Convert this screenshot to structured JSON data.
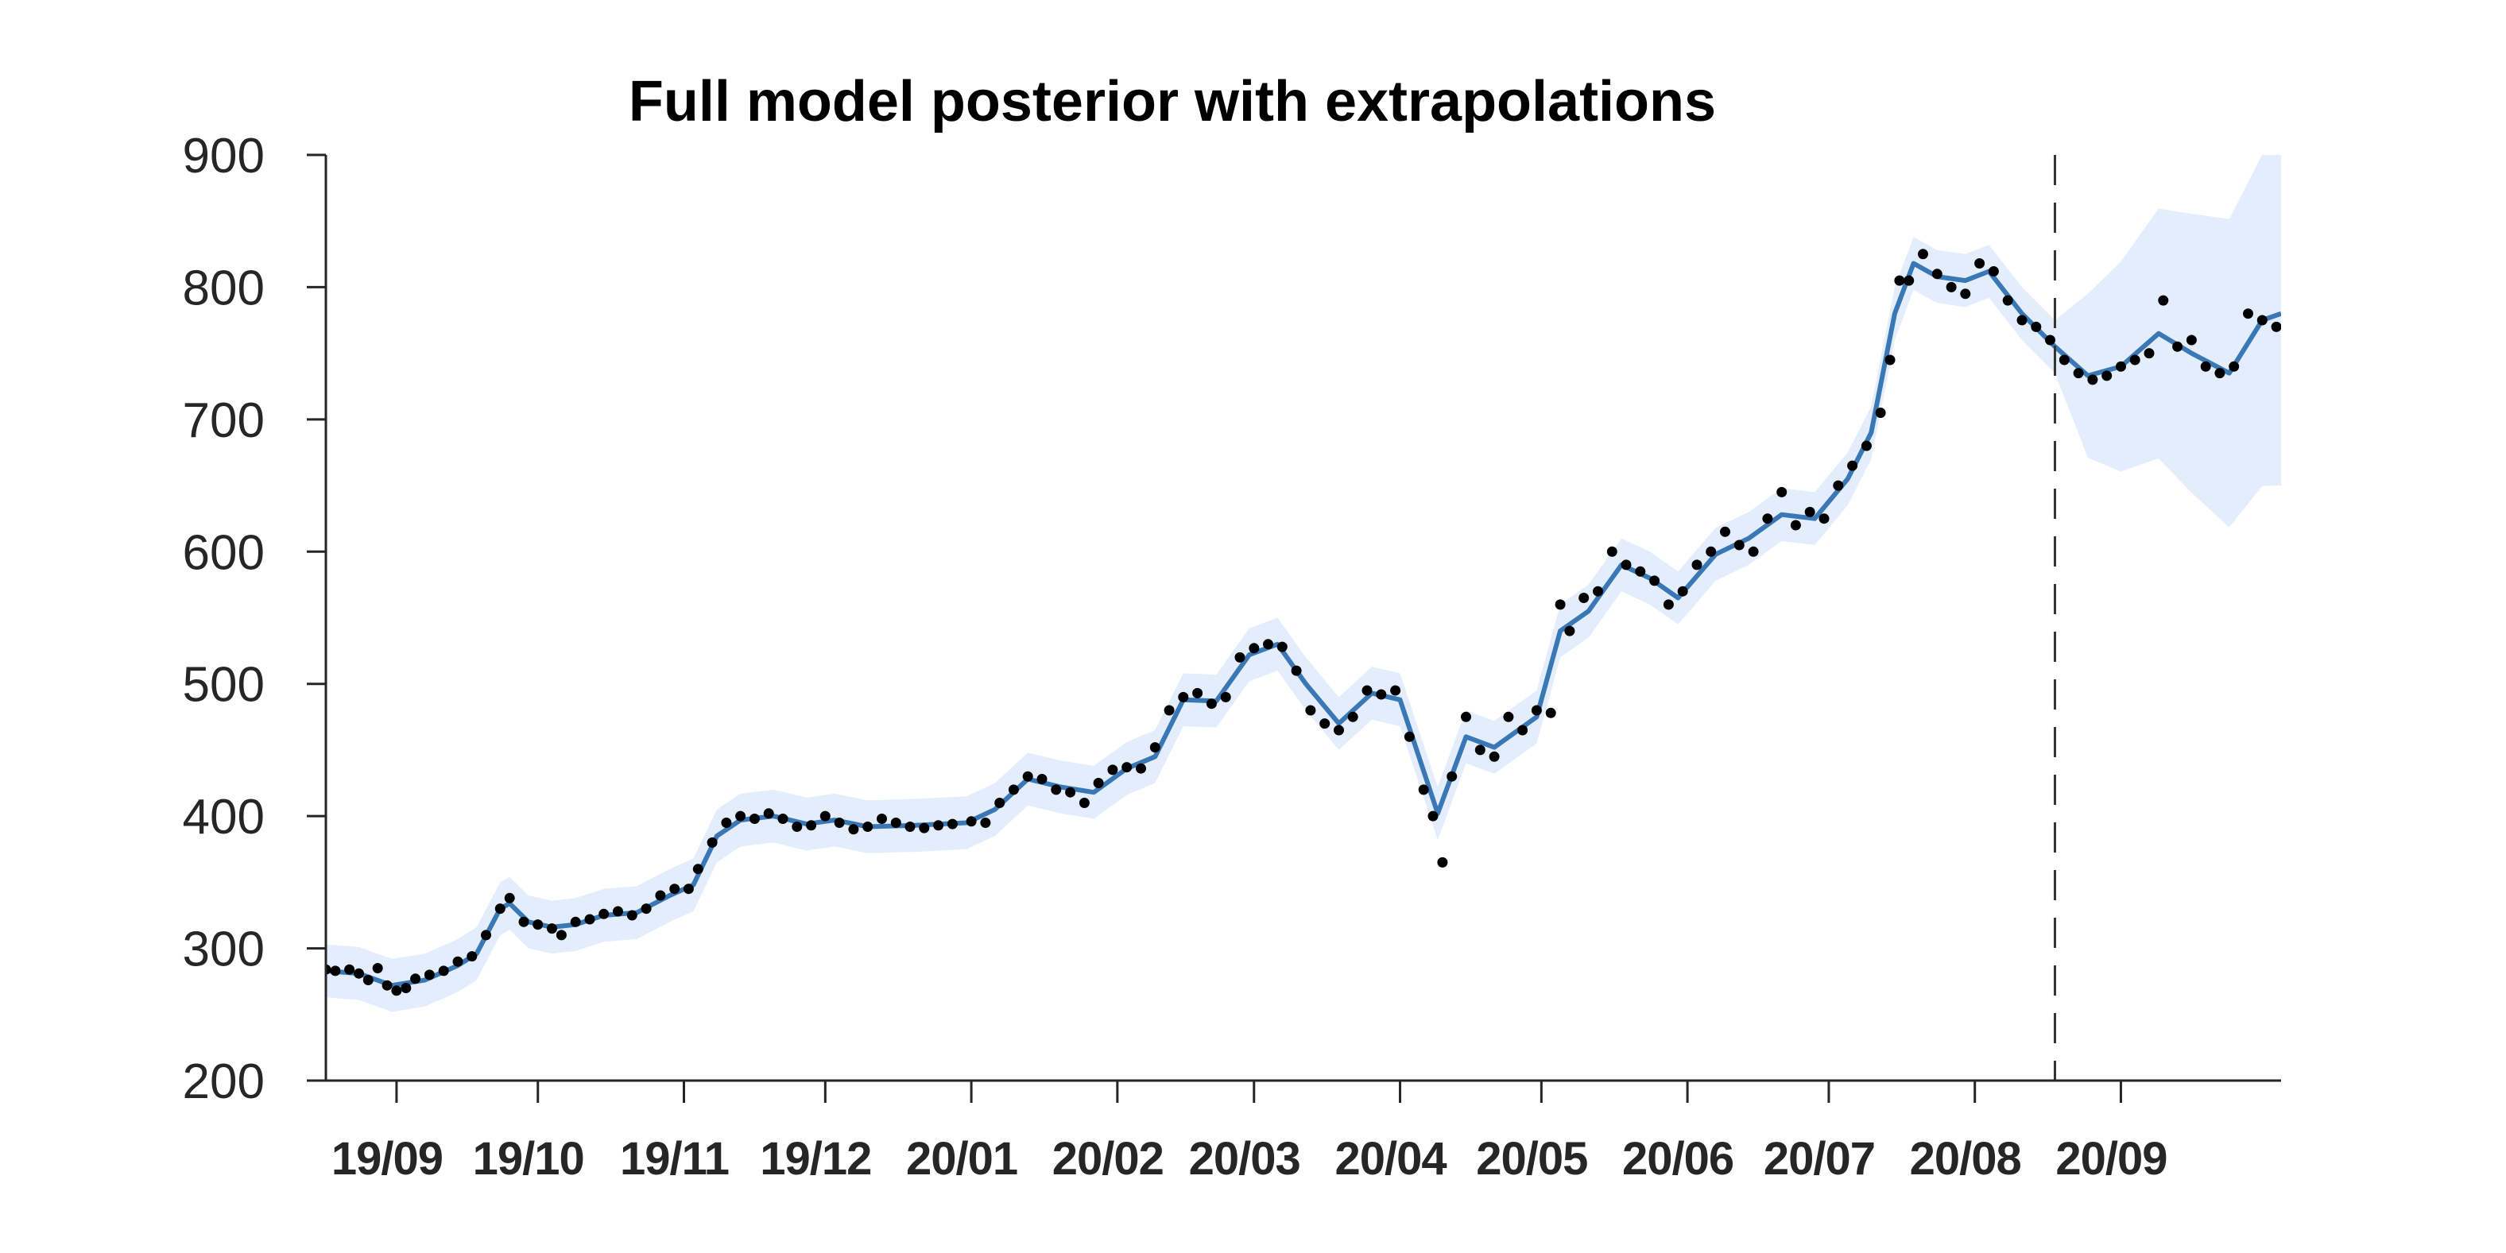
{
  "chart_data": {
    "type": "line",
    "title": "Full model posterior with extrapolations",
    "xlabel": "",
    "ylabel": "",
    "ylim": [
      200,
      900
    ],
    "yticks": [
      200,
      300,
      400,
      500,
      600,
      700,
      800,
      900
    ],
    "xlim": [
      "2019-08-17",
      "2020-10-05"
    ],
    "xticks": [
      {
        "date": "2019-09-01",
        "label": "19/09"
      },
      {
        "date": "2019-10-01",
        "label": "19/10"
      },
      {
        "date": "2019-11-01",
        "label": "19/11"
      },
      {
        "date": "2019-12-01",
        "label": "19/12"
      },
      {
        "date": "2020-01-01",
        "label": "20/01"
      },
      {
        "date": "2020-02-01",
        "label": "20/02"
      },
      {
        "date": "2020-03-01",
        "label": "20/03"
      },
      {
        "date": "2020-04-01",
        "label": "20/04"
      },
      {
        "date": "2020-05-01",
        "label": "20/05"
      },
      {
        "date": "2020-06-01",
        "label": "20/06"
      },
      {
        "date": "2020-07-01",
        "label": "20/07"
      },
      {
        "date": "2020-08-01",
        "label": "20/08"
      },
      {
        "date": "2020-09-01",
        "label": "20/09"
      }
    ],
    "forecast_start": "2020-08-18",
    "grid": false,
    "legend": "none",
    "colors": {
      "mean": "#3a78b5",
      "band": "#e4edfc",
      "points": "#000000",
      "axis": "#262626",
      "divider": "#333333"
    },
    "series": [
      {
        "role": "observations",
        "points": [
          [
            "2019-08-17",
            284
          ],
          [
            "2019-08-19",
            283
          ],
          [
            "2019-08-22",
            284
          ],
          [
            "2019-08-24",
            281
          ],
          [
            "2019-08-26",
            276
          ],
          [
            "2019-08-28",
            285
          ],
          [
            "2019-08-30",
            272
          ],
          [
            "2019-09-01",
            268
          ],
          [
            "2019-09-03",
            270
          ],
          [
            "2019-09-05",
            277
          ],
          [
            "2019-09-08",
            280
          ],
          [
            "2019-09-11",
            283
          ],
          [
            "2019-09-14",
            290
          ],
          [
            "2019-09-17",
            294
          ],
          [
            "2019-09-20",
            310
          ],
          [
            "2019-09-23",
            330
          ],
          [
            "2019-09-25",
            338
          ],
          [
            "2019-09-28",
            320
          ],
          [
            "2019-10-01",
            318
          ],
          [
            "2019-10-04",
            315
          ],
          [
            "2019-10-06",
            310
          ],
          [
            "2019-10-09",
            320
          ],
          [
            "2019-10-12",
            322
          ],
          [
            "2019-10-15",
            326
          ],
          [
            "2019-10-18",
            328
          ],
          [
            "2019-10-21",
            325
          ],
          [
            "2019-10-24",
            330
          ],
          [
            "2019-10-27",
            340
          ],
          [
            "2019-10-30",
            345
          ],
          [
            "2019-11-02",
            345
          ],
          [
            "2019-11-04",
            360
          ],
          [
            "2019-11-07",
            380
          ],
          [
            "2019-11-10",
            395
          ],
          [
            "2019-11-13",
            400
          ],
          [
            "2019-11-16",
            398
          ],
          [
            "2019-11-19",
            402
          ],
          [
            "2019-11-22",
            398
          ],
          [
            "2019-11-25",
            392
          ],
          [
            "2019-11-28",
            393
          ],
          [
            "2019-12-01",
            400
          ],
          [
            "2019-12-04",
            395
          ],
          [
            "2019-12-07",
            390
          ],
          [
            "2019-12-10",
            392
          ],
          [
            "2019-12-13",
            398
          ],
          [
            "2019-12-16",
            395
          ],
          [
            "2019-12-19",
            392
          ],
          [
            "2019-12-22",
            391
          ],
          [
            "2019-12-25",
            393
          ],
          [
            "2019-12-28",
            394
          ],
          [
            "2020-01-01",
            396
          ],
          [
            "2020-01-04",
            395
          ],
          [
            "2020-01-07",
            410
          ],
          [
            "2020-01-10",
            420
          ],
          [
            "2020-01-13",
            430
          ],
          [
            "2020-01-16",
            428
          ],
          [
            "2020-01-19",
            420
          ],
          [
            "2020-01-22",
            418
          ],
          [
            "2020-01-25",
            410
          ],
          [
            "2020-01-28",
            425
          ],
          [
            "2020-01-31",
            435
          ],
          [
            "2020-02-03",
            437
          ],
          [
            "2020-02-06",
            436
          ],
          [
            "2020-02-09",
            452
          ],
          [
            "2020-02-12",
            480
          ],
          [
            "2020-02-15",
            490
          ],
          [
            "2020-02-18",
            493
          ],
          [
            "2020-02-21",
            485
          ],
          [
            "2020-02-24",
            490
          ],
          [
            "2020-02-27",
            520
          ],
          [
            "2020-03-01",
            527
          ],
          [
            "2020-03-04",
            530
          ],
          [
            "2020-03-07",
            528
          ],
          [
            "2020-03-10",
            510
          ],
          [
            "2020-03-13",
            480
          ],
          [
            "2020-03-16",
            470
          ],
          [
            "2020-03-19",
            465
          ],
          [
            "2020-03-22",
            475
          ],
          [
            "2020-03-25",
            495
          ],
          [
            "2020-03-28",
            492
          ],
          [
            "2020-03-31",
            495
          ],
          [
            "2020-04-03",
            460
          ],
          [
            "2020-04-06",
            420
          ],
          [
            "2020-04-08",
            400
          ],
          [
            "2020-04-10",
            365
          ],
          [
            "2020-04-12",
            430
          ],
          [
            "2020-04-15",
            475
          ],
          [
            "2020-04-18",
            450
          ],
          [
            "2020-04-21",
            445
          ],
          [
            "2020-04-24",
            475
          ],
          [
            "2020-04-27",
            465
          ],
          [
            "2020-04-30",
            480
          ],
          [
            "2020-05-03",
            478
          ],
          [
            "2020-05-05",
            560
          ],
          [
            "2020-05-07",
            540
          ],
          [
            "2020-05-10",
            565
          ],
          [
            "2020-05-13",
            570
          ],
          [
            "2020-05-16",
            600
          ],
          [
            "2020-05-19",
            590
          ],
          [
            "2020-05-22",
            585
          ],
          [
            "2020-05-25",
            578
          ],
          [
            "2020-05-28",
            560
          ],
          [
            "2020-05-31",
            570
          ],
          [
            "2020-06-03",
            590
          ],
          [
            "2020-06-06",
            600
          ],
          [
            "2020-06-09",
            615
          ],
          [
            "2020-06-12",
            605
          ],
          [
            "2020-06-15",
            600
          ],
          [
            "2020-06-18",
            625
          ],
          [
            "2020-06-21",
            645
          ],
          [
            "2020-06-24",
            620
          ],
          [
            "2020-06-27",
            630
          ],
          [
            "2020-06-30",
            625
          ],
          [
            "2020-07-03",
            650
          ],
          [
            "2020-07-06",
            665
          ],
          [
            "2020-07-09",
            680
          ],
          [
            "2020-07-12",
            705
          ],
          [
            "2020-07-14",
            745
          ],
          [
            "2020-07-16",
            805
          ],
          [
            "2020-07-18",
            805
          ],
          [
            "2020-07-21",
            825
          ],
          [
            "2020-07-24",
            810
          ],
          [
            "2020-07-27",
            800
          ],
          [
            "2020-07-30",
            795
          ],
          [
            "2020-08-02",
            818
          ],
          [
            "2020-08-05",
            812
          ],
          [
            "2020-08-08",
            790
          ],
          [
            "2020-08-11",
            775
          ],
          [
            "2020-08-14",
            770
          ],
          [
            "2020-08-17",
            760
          ],
          [
            "2020-08-20",
            745
          ],
          [
            "2020-08-23",
            735
          ],
          [
            "2020-08-26",
            730
          ],
          [
            "2020-08-29",
            733
          ],
          [
            "2020-09-01",
            740
          ],
          [
            "2020-09-04",
            745
          ],
          [
            "2020-09-07",
            750
          ],
          [
            "2020-09-10",
            790
          ],
          [
            "2020-09-13",
            755
          ],
          [
            "2020-09-16",
            760
          ],
          [
            "2020-09-19",
            740
          ],
          [
            "2020-09-22",
            735
          ],
          [
            "2020-09-25",
            740
          ],
          [
            "2020-09-28",
            780
          ],
          [
            "2020-10-01",
            775
          ],
          [
            "2020-10-04",
            770
          ]
        ]
      },
      {
        "role": "posterior-mean",
        "points": [
          [
            "2019-08-17",
            283
          ],
          [
            "2019-08-24",
            281
          ],
          [
            "2019-08-31",
            272
          ],
          [
            "2019-09-07",
            276
          ],
          [
            "2019-09-14",
            287
          ],
          [
            "2019-09-18",
            296
          ],
          [
            "2019-09-23",
            330
          ],
          [
            "2019-09-25",
            334
          ],
          [
            "2019-09-29",
            320
          ],
          [
            "2019-10-04",
            316
          ],
          [
            "2019-10-09",
            318
          ],
          [
            "2019-10-15",
            325
          ],
          [
            "2019-10-22",
            327
          ],
          [
            "2019-10-29",
            340
          ],
          [
            "2019-11-03",
            348
          ],
          [
            "2019-11-08",
            385
          ],
          [
            "2019-11-13",
            397
          ],
          [
            "2019-11-20",
            400
          ],
          [
            "2019-11-27",
            394
          ],
          [
            "2019-12-03",
            397
          ],
          [
            "2019-12-10",
            392
          ],
          [
            "2019-12-20",
            393
          ],
          [
            "2019-12-31",
            395
          ],
          [
            "2020-01-06",
            405
          ],
          [
            "2020-01-13",
            428
          ],
          [
            "2020-01-20",
            422
          ],
          [
            "2020-01-27",
            418
          ],
          [
            "2020-02-03",
            436
          ],
          [
            "2020-02-09",
            445
          ],
          [
            "2020-02-15",
            488
          ],
          [
            "2020-02-22",
            487
          ],
          [
            "2020-02-29",
            522
          ],
          [
            "2020-03-06",
            530
          ],
          [
            "2020-03-12",
            500
          ],
          [
            "2020-03-19",
            470
          ],
          [
            "2020-03-26",
            493
          ],
          [
            "2020-04-01",
            488
          ],
          [
            "2020-04-05",
            445
          ],
          [
            "2020-04-09",
            402
          ],
          [
            "2020-04-15",
            460
          ],
          [
            "2020-04-21",
            452
          ],
          [
            "2020-04-30",
            475
          ],
          [
            "2020-05-05",
            540
          ],
          [
            "2020-05-11",
            555
          ],
          [
            "2020-05-18",
            590
          ],
          [
            "2020-05-24",
            580
          ],
          [
            "2020-05-30",
            565
          ],
          [
            "2020-06-07",
            598
          ],
          [
            "2020-06-14",
            610
          ],
          [
            "2020-06-21",
            628
          ],
          [
            "2020-06-28",
            625
          ],
          [
            "2020-07-05",
            655
          ],
          [
            "2020-07-10",
            690
          ],
          [
            "2020-07-15",
            780
          ],
          [
            "2020-07-19",
            818
          ],
          [
            "2020-07-24",
            808
          ],
          [
            "2020-07-30",
            805
          ],
          [
            "2020-08-04",
            812
          ],
          [
            "2020-08-11",
            780
          ],
          [
            "2020-08-18",
            755
          ],
          [
            "2020-08-25",
            733
          ],
          [
            "2020-09-01",
            740
          ],
          [
            "2020-09-09",
            765
          ],
          [
            "2020-09-16",
            750
          ],
          [
            "2020-09-24",
            735
          ],
          [
            "2020-10-01",
            775
          ],
          [
            "2020-10-05",
            780
          ]
        ]
      }
    ]
  }
}
